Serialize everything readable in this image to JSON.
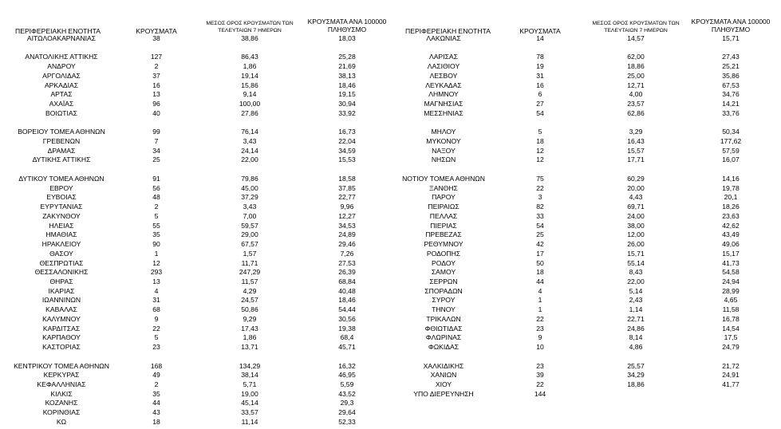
{
  "left_table": {
    "header": [
      "ΠΕΡΙΦΕΡΕΙΑΚΗ ΕΝΟΤΗΤΑ",
      "ΚΡΟΥΣΜΑΤΑ",
      "ΜΕΣΟΣ ΟΡΟΣ ΚΡΟΥΣΜΑΤΩΝ ΤΩΝ ΤΕΛΕΥΤΑΙΩΝ 7 ΗΜΕΡΩΝ",
      "ΚΡΟΥΣΜΑΤΑ ΑΝΑ 100000 ΠΛΗΘΥΣΜΟ"
    ],
    "groups": [
      [
        [
          "ΑΙΤΩΛΟΑΚΑΡΝΑΝΙΑΣ",
          "38",
          "38,86",
          "18,03"
        ]
      ],
      [
        [
          "ΑΝΑΤΟΛΙΚΗΣ ΑΤΤΙΚΗΣ",
          "127",
          "86,43",
          "25,28"
        ],
        [
          "ΑΝΔΡΟΥ",
          "2",
          "1,86",
          "21,69"
        ],
        [
          "ΑΡΓΟΛΙΔΑΣ",
          "37",
          "19,14",
          "38,13"
        ],
        [
          "ΑΡΚΑΔΙΑΣ",
          "16",
          "15,86",
          "18,46"
        ],
        [
          "ΑΡΤΑΣ",
          "13",
          "9,14",
          "19,15"
        ],
        [
          "ΑΧΑΪΑΣ",
          "96",
          "100,00",
          "30,94"
        ],
        [
          "ΒΟΙΩΤΙΑΣ",
          "40",
          "27,86",
          "33,92"
        ]
      ],
      [
        [
          "ΒΟΡΕΙΟΥ ΤΟΜΕΑ ΑΘΗΝΩΝ",
          "99",
          "76,14",
          "16,73"
        ],
        [
          "ΓΡΕΒΕΝΩΝ",
          "7",
          "3,43",
          "22,04"
        ],
        [
          "ΔΡΑΜΑΣ",
          "34",
          "24,14",
          "34,59"
        ],
        [
          "ΔΥΤΙΚΗΣ ΑΤΤΙΚΗΣ",
          "25",
          "22,00",
          "15,53"
        ]
      ],
      [
        [
          "ΔΥΤΙΚΟΥ ΤΟΜΕΑ ΑΘΗΝΩΝ",
          "91",
          "79,86",
          "18,58"
        ],
        [
          "ΕΒΡΟΥ",
          "56",
          "45,00",
          "37,85"
        ],
        [
          "ΕΥΒΟΙΑΣ",
          "48",
          "37,29",
          "22,77"
        ],
        [
          "ΕΥΡΥΤΑΝΙΑΣ",
          "2",
          "3,43",
          "9,96"
        ],
        [
          "ΖΑΚΥΝΘΟΥ",
          "5",
          "7,00",
          "12,27"
        ],
        [
          "ΗΛΕΙΑΣ",
          "55",
          "59,57",
          "34,53"
        ],
        [
          "ΗΜΑΘΙΑΣ",
          "35",
          "29,00",
          "24,89"
        ],
        [
          "ΗΡΑΚΛΕΙΟΥ",
          "90",
          "67,57",
          "29,46"
        ],
        [
          "ΘΑΣΟΥ",
          "1",
          "1,57",
          "7,26"
        ],
        [
          "ΘΕΣΠΡΩΤΙΑΣ",
          "12",
          "11,71",
          "27,53"
        ],
        [
          "ΘΕΣΣΑΛΟΝΙΚΗΣ",
          "293",
          "247,29",
          "26,39"
        ],
        [
          "ΘΗΡΑΣ",
          "13",
          "11,57",
          "68,84"
        ],
        [
          "ΙΚΑΡΙΑΣ",
          "4",
          "4,29",
          "40,48"
        ],
        [
          "ΙΩΑΝΝΙΝΩΝ",
          "31",
          "24,57",
          "18,46"
        ],
        [
          "ΚΑΒΑΛΑΣ",
          "68",
          "50,86",
          "54,44"
        ],
        [
          "ΚΑΛΥΜΝΟΥ",
          "9",
          "9,29",
          "30,56"
        ],
        [
          "ΚΑΡΔΙΤΣΑΣ",
          "22",
          "17,43",
          "19,38"
        ],
        [
          "ΚΑΡΠΑΘΟΥ",
          "5",
          "1,86",
          "68,4"
        ],
        [
          "ΚΑΣΤΟΡΙΑΣ",
          "23",
          "13,71",
          "45,71"
        ]
      ],
      [
        [
          "ΚΕΝΤΡΙΚΟΥ ΤΟΜΕΑ ΑΘΗΝΩΝ",
          "168",
          "134,29",
          "16,32"
        ],
        [
          "ΚΕΡΚΥΡΑΣ",
          "49",
          "38,14",
          "46,95"
        ],
        [
          "ΚΕΦΑΛΛΗΝΙΑΣ",
          "2",
          "5,71",
          "5,59"
        ],
        [
          "ΚΙΛΚΙΣ",
          "35",
          "19,00",
          "43,52"
        ],
        [
          "ΚΟΖΑΝΗΣ",
          "44",
          "45,14",
          "29,3"
        ],
        [
          "ΚΟΡΙΝΘΙΑΣ",
          "43",
          "33,57",
          "29,64"
        ],
        [
          "ΚΩ",
          "18",
          "11,14",
          "52,33"
        ]
      ]
    ]
  },
  "right_table": {
    "header": [
      "ΠΕΡΙΦΕΡΕΙΑΚΗ ΕΝΟΤΗΤΑ",
      "ΚΡΟΥΣΜΑΤΑ",
      "ΜΕΣΟΣ ΟΡΟΣ ΚΡΟΥΣΜΑΤΩΝ ΤΩΝ ΤΕΛΕΥΤΑΙΩΝ 7 ΗΜΕΡΩΝ",
      "ΚΡΟΥΣΜΑΤΑ ΑΝΑ 100000 ΠΛΗΘΥΣΜΟ"
    ],
    "groups": [
      [
        [
          "ΛΑΚΩΝΙΑΣ",
          "14",
          "14,57",
          "15,71"
        ]
      ],
      [
        [
          "ΛΑΡΙΣΑΣ",
          "78",
          "62,00",
          "27,43"
        ],
        [
          "ΛΑΣΙΘΙΟΥ",
          "19",
          "18,86",
          "25,21"
        ],
        [
          "ΛΕΣΒΟΥ",
          "31",
          "25,00",
          "35,86"
        ],
        [
          "ΛΕΥΚΑΔΑΣ",
          "16",
          "12,71",
          "67,53"
        ],
        [
          "ΛΗΜΝΟΥ",
          "6",
          "4,00",
          "34,76"
        ],
        [
          "ΜΑΓΝΗΣΙΑΣ",
          "27",
          "23,57",
          "14,21"
        ],
        [
          "ΜΕΣΣΗΝΙΑΣ",
          "54",
          "62,86",
          "33,76"
        ]
      ],
      [
        [
          "ΜΗΛΟΥ",
          "5",
          "3,29",
          "50,34"
        ],
        [
          "ΜΥΚΟΝΟΥ",
          "18",
          "16,43",
          "177,62"
        ],
        [
          "ΝΑΞΟΥ",
          "12",
          "15,57",
          "57,59"
        ],
        [
          "ΝΗΣΩΝ",
          "12",
          "17,71",
          "16,07"
        ]
      ],
      [
        [
          "ΝΟΤΙΟΥ ΤΟΜΕΑ ΑΘΗΝΩΝ",
          "75",
          "60,29",
          "14,16"
        ],
        [
          "ΞΑΝΘΗΣ",
          "22",
          "20,00",
          "19,78"
        ],
        [
          "ΠΑΡΟΥ",
          "3",
          "4,43",
          "20,1"
        ],
        [
          "ΠΕΙΡΑΙΩΣ",
          "82",
          "69,71",
          "18,26"
        ],
        [
          "ΠΕΛΛΑΣ",
          "33",
          "24,00",
          "23,63"
        ],
        [
          "ΠΙΕΡΙΑΣ",
          "54",
          "38,00",
          "42,62"
        ],
        [
          "ΠΡΕΒΕΖΑΣ",
          "25",
          "12,00",
          "43,49"
        ],
        [
          "ΡΕΘΥΜΝΟΥ",
          "42",
          "26,00",
          "49,06"
        ],
        [
          "ΡΟΔΟΠΗΣ",
          "17",
          "15,71",
          "15,17"
        ],
        [
          "ΡΟΔΟΥ",
          "50",
          "55,14",
          "41,73"
        ],
        [
          "ΣΑΜΟΥ",
          "18",
          "8,43",
          "54,58"
        ],
        [
          "ΣΕΡΡΩΝ",
          "44",
          "22,00",
          "24,94"
        ],
        [
          "ΣΠΟΡΑΔΩΝ",
          "4",
          "5,14",
          "28,99"
        ],
        [
          "ΣΥΡΟΥ",
          "1",
          "2,43",
          "4,65"
        ],
        [
          "ΤΗΝΟΥ",
          "1",
          "1,14",
          "11,58"
        ],
        [
          "ΤΡΙΚΑΛΩΝ",
          "22",
          "22,71",
          "16,78"
        ],
        [
          "ΦΘΙΩΤΙΔΑΣ",
          "23",
          "24,86",
          "14,54"
        ],
        [
          "ΦΛΩΡΙΝΑΣ",
          "9",
          "8,14",
          "17,5"
        ],
        [
          "ΦΩΚΙΔΑΣ",
          "10",
          "4,86",
          "24,79"
        ]
      ],
      [
        [
          "ΧΑΛΚΙΔΙΚΗΣ",
          "23",
          "25,57",
          "21,72"
        ],
        [
          "ΧΑΝΙΩΝ",
          "39",
          "34,29",
          "24,91"
        ],
        [
          "ΧΙΟΥ",
          "22",
          "18,86",
          "41,77"
        ],
        [
          "ΥΠΟ ΔΙΕΡΕΥΝΗΣΗ",
          "144"
        ]
      ]
    ]
  }
}
